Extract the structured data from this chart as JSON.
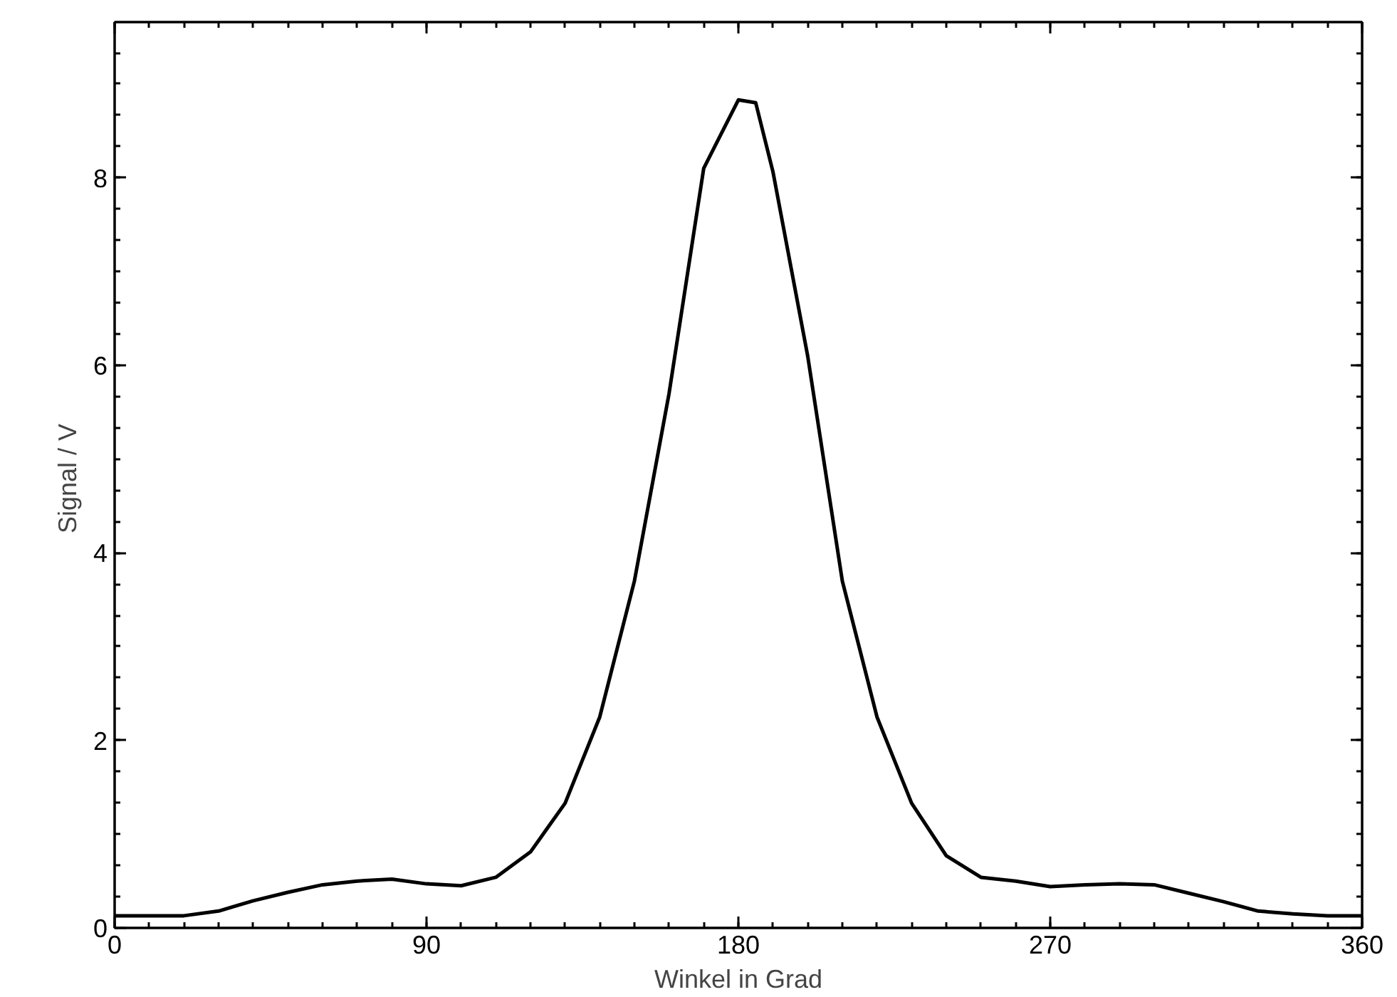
{
  "chart_data": {
    "type": "line",
    "xlabel": "Winkel in Grad",
    "ylabel": "Signal  / V",
    "x": [
      0,
      10,
      20,
      30,
      40,
      50,
      60,
      70,
      80,
      90,
      100,
      110,
      120,
      130,
      140,
      150,
      160,
      170,
      180,
      185,
      190,
      200,
      210,
      220,
      230,
      240,
      250,
      260,
      270,
      280,
      290,
      300,
      310,
      320,
      330,
      340,
      350,
      360
    ],
    "series": [
      {
        "color": "#000000",
        "values": [
          0.13,
          0.13,
          0.13,
          0.18,
          0.29,
          0.38,
          0.46,
          0.5,
          0.52,
          0.47,
          0.45,
          0.54,
          0.81,
          1.33,
          2.25,
          3.7,
          5.7,
          8.1,
          8.83,
          8.8,
          8.06,
          6.1,
          3.7,
          2.25,
          1.33,
          0.77,
          0.54,
          0.5,
          0.44,
          0.46,
          0.47,
          0.46,
          0.37,
          0.28,
          0.18,
          0.15,
          0.13,
          0.13
        ]
      }
    ],
    "xlim": [
      0,
      360
    ],
    "ylim": [
      0,
      9.66
    ],
    "xticks": [
      0,
      90,
      180,
      270,
      360
    ],
    "yticks": [
      0,
      2,
      4,
      6,
      8
    ],
    "grid": false,
    "marker": "none",
    "line_style": "solid"
  }
}
